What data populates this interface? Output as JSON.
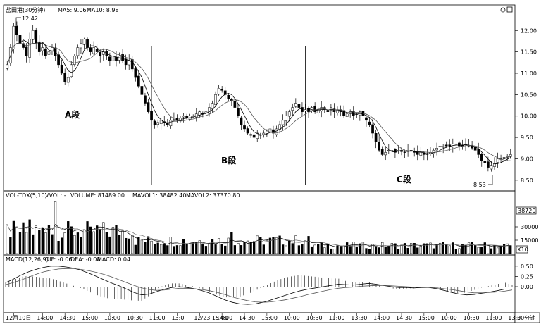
{
  "header": {
    "main_title": "盐田港(30分钟)",
    "ma5": "MA5: 9.06",
    "ma10": "MA10: 8.98",
    "icons": [
      "circle-icon",
      "square-icon"
    ]
  },
  "volume_header": {
    "label": "VOL-TDX(5,10)",
    "vvol": "VVOL: -",
    "volume": "VOLUME: 81489.00",
    "mavol1": "MAVOL1: 38482.40",
    "mavol2": "MAVOL2: 37370.80"
  },
  "macd_header": {
    "label": "MACD(12,26,9)",
    "dif": "DIF: -0.06",
    "dea": "DEA: -0.08",
    "macd": "MACD: 0.04"
  },
  "annotations": {
    "high_label": "12.42",
    "low_label": "8.53",
    "segment_a": "A段",
    "segment_b": "B段",
    "segment_c": "C段"
  },
  "volume_axis": {
    "current_box": "38720",
    "unit_box": "X10"
  },
  "period_label": "30分钟",
  "chart_data": [
    {
      "type": "candlestick",
      "title": "盐田港(30分钟)",
      "ylim": [
        8.3,
        12.35
      ],
      "y_ticks": [
        "12.00",
        "11.50",
        "11.00",
        "10.50",
        "10.00",
        "9.50",
        "9.00",
        "8.50"
      ],
      "y_tick_values": [
        12.0,
        11.5,
        11.0,
        10.5,
        10.0,
        9.5,
        9.0,
        8.5
      ],
      "x_ticks": [
        "12月10日",
        "14:00",
        "14:30",
        "15:00",
        "10:00",
        "10:30",
        "11:00",
        "13:0",
        "12/23 15:00",
        "14:00",
        "14:30",
        "15:00",
        "10:00",
        "10:30",
        "11:00",
        "13:30",
        "14:00",
        "14:30",
        "15:00",
        "10:00",
        "10:30",
        "11:00",
        "13:0"
      ],
      "x_tick_index": [
        2,
        11,
        18,
        25,
        32,
        39,
        46,
        53,
        60,
        67,
        74,
        81,
        88,
        95,
        102,
        109,
        116,
        123,
        130,
        137,
        144,
        151,
        158
      ],
      "separators_at_index": [
        45,
        93
      ],
      "high": {
        "value": 12.42,
        "index": 3
      },
      "low": {
        "value": 8.53,
        "index": 153
      },
      "close": [
        11.2,
        11.6,
        12.1,
        11.9,
        11.7,
        11.6,
        11.4,
        11.8,
        12.0,
        11.7,
        11.5,
        11.6,
        11.4,
        11.5,
        11.6,
        11.4,
        11.2,
        11.0,
        10.8,
        10.9,
        11.2,
        11.4,
        11.6,
        11.7,
        11.8,
        11.6,
        11.5,
        11.6,
        11.5,
        11.4,
        11.5,
        11.4,
        11.3,
        11.4,
        11.3,
        11.4,
        11.3,
        11.2,
        11.3,
        11.1,
        10.9,
        10.7,
        10.5,
        10.3,
        10.1,
        9.9,
        9.8,
        9.85,
        9.9,
        9.85,
        9.8,
        9.9,
        9.95,
        9.9,
        9.95,
        10.0,
        9.95,
        10.0,
        10.0,
        10.05,
        10.1,
        10.05,
        10.1,
        10.2,
        10.3,
        10.5,
        10.65,
        10.6,
        10.5,
        10.4,
        10.35,
        10.2,
        10.0,
        9.8,
        9.7,
        9.6,
        9.55,
        9.5,
        9.6,
        9.55,
        9.6,
        9.65,
        9.7,
        9.6,
        9.7,
        9.8,
        9.9,
        10.0,
        10.1,
        10.2,
        10.3,
        10.2,
        10.1,
        10.15,
        10.1,
        10.2,
        10.1,
        10.15,
        10.2,
        10.15,
        10.1,
        10.2,
        10.1,
        10.15,
        10.1,
        10.0,
        10.05,
        10.1,
        10.0,
        10.05,
        10.1,
        10.0,
        9.9,
        9.8,
        9.6,
        9.4,
        9.2,
        9.1,
        9.15,
        9.2,
        9.2,
        9.15,
        9.2,
        9.2,
        9.15,
        9.2,
        9.2,
        9.15,
        9.1,
        9.15,
        9.1,
        9.1,
        9.15,
        9.2,
        9.25,
        9.3,
        9.3,
        9.3,
        9.3,
        9.35,
        9.35,
        9.3,
        9.3,
        9.35,
        9.3,
        9.25,
        9.2,
        9.1,
        8.95,
        8.9,
        8.8,
        8.85,
        8.9,
        9.0,
        9.0,
        9.0,
        9.05,
        9.1
      ]
    },
    {
      "type": "bar",
      "title": "VOL-TDX(5,10)",
      "ylim": [
        0,
        60000
      ],
      "y_ticks": [
        "38720",
        "30000",
        "15000"
      ],
      "y_tick_values": [
        38720,
        30000,
        15000
      ],
      "peak_index": 15,
      "peak_value": 58000
    },
    {
      "type": "line",
      "title": "MACD(12,26,9)",
      "ylim": [
        -0.6,
        0.6
      ],
      "y_ticks": [
        "0.50",
        "0.25",
        "0.00"
      ],
      "y_tick_values": [
        0.5,
        0.25,
        0.0
      ],
      "series": [
        {
          "name": "DIF",
          "values": [
            0.1,
            0.18,
            0.28,
            0.36,
            0.42,
            0.47,
            0.5,
            0.5,
            0.48,
            0.45,
            0.4,
            0.33,
            0.25,
            0.17,
            0.09,
            0.02,
            -0.06,
            -0.14,
            -0.2,
            -0.18,
            -0.12,
            -0.06,
            -0.02,
            0.0,
            -0.02,
            -0.05,
            -0.1,
            -0.16,
            -0.24,
            -0.32,
            -0.38,
            -0.42,
            -0.43,
            -0.42,
            -0.38,
            -0.33,
            -0.27,
            -0.21,
            -0.15,
            -0.1,
            -0.06,
            -0.03,
            0.0,
            0.03,
            0.06,
            0.05,
            0.04,
            0.06,
            0.08,
            0.06,
            0.03,
            0.0,
            -0.02,
            -0.02,
            -0.03,
            -0.02,
            -0.02,
            -0.05,
            -0.09,
            -0.14,
            -0.18,
            -0.2,
            -0.19,
            -0.16,
            -0.13,
            -0.1,
            -0.06,
            -0.06
          ]
        },
        {
          "name": "DEA",
          "values": [
            0.05,
            0.1,
            0.16,
            0.23,
            0.3,
            0.36,
            0.4,
            0.43,
            0.44,
            0.44,
            0.42,
            0.39,
            0.35,
            0.3,
            0.24,
            0.17,
            0.1,
            0.03,
            -0.03,
            -0.07,
            -0.09,
            -0.08,
            -0.06,
            -0.04,
            -0.04,
            -0.05,
            -0.07,
            -0.1,
            -0.14,
            -0.19,
            -0.25,
            -0.3,
            -0.34,
            -0.37,
            -0.38,
            -0.37,
            -0.35,
            -0.32,
            -0.28,
            -0.24,
            -0.19,
            -0.15,
            -0.11,
            -0.07,
            -0.04,
            -0.02,
            -0.01,
            0.01,
            0.02,
            0.03,
            0.03,
            0.02,
            0.01,
            0.0,
            -0.01,
            -0.01,
            -0.02,
            -0.03,
            -0.05,
            -0.07,
            -0.1,
            -0.13,
            -0.15,
            -0.15,
            -0.14,
            -0.13,
            -0.11,
            -0.08
          ]
        }
      ]
    }
  ]
}
